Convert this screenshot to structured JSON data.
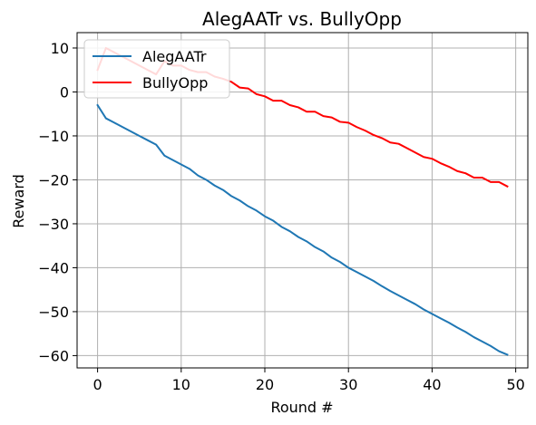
{
  "chart_data": {
    "type": "line",
    "title": "AlegAATr vs. BullyOpp",
    "xlabel": "Round #",
    "ylabel": "Reward",
    "xlim": [
      -2.45,
      51.45
    ],
    "ylim": [
      -62.8,
      13.5
    ],
    "xticks": [
      0,
      10,
      20,
      30,
      40,
      50
    ],
    "yticks": [
      10,
      0,
      -10,
      -20,
      -30,
      -40,
      -50,
      -60
    ],
    "grid": true,
    "legend_position": "upper-left",
    "x": [
      0,
      1,
      2,
      3,
      4,
      5,
      6,
      7,
      8,
      9,
      10,
      11,
      12,
      13,
      14,
      15,
      16,
      17,
      18,
      19,
      20,
      21,
      22,
      23,
      24,
      25,
      26,
      27,
      28,
      29,
      30,
      31,
      32,
      33,
      34,
      35,
      36,
      37,
      38,
      39,
      40,
      41,
      42,
      43,
      44,
      45,
      46,
      47,
      48,
      49
    ],
    "series": [
      {
        "name": "AlegAATr",
        "color": "#1f77b4",
        "values": [
          -3,
          -6,
          -7,
          -8,
          -9,
          -10,
          -11,
          -12,
          -14.5,
          -15.5,
          -16.5,
          -17.5,
          -19,
          -20,
          -21.3,
          -22.3,
          -23.7,
          -24.7,
          -26,
          -27,
          -28.3,
          -29.3,
          -30.7,
          -31.7,
          -33,
          -34,
          -35.3,
          -36.3,
          -37.7,
          -38.7,
          -40,
          -41,
          -42,
          -43,
          -44.2,
          -45.3,
          -46.3,
          -47.3,
          -48.3,
          -49.5,
          -50.5,
          -51.5,
          -52.5,
          -53.6,
          -54.6,
          -55.8,
          -56.8,
          -57.8,
          -59,
          -59.8
        ]
      },
      {
        "name": "BullyOpp",
        "color": "#ff0000",
        "values": [
          5,
          10,
          9,
          8,
          7,
          6,
          5,
          4,
          7,
          6,
          6,
          5,
          4.5,
          4.5,
          3.5,
          3,
          2.3,
          1,
          0.8,
          -0.5,
          -1,
          -2,
          -2,
          -3,
          -3.5,
          -4.5,
          -4.5,
          -5.5,
          -5.8,
          -6.8,
          -7,
          -8,
          -8.8,
          -9.8,
          -10.5,
          -11.5,
          -11.8,
          -12.8,
          -13.8,
          -14.8,
          -15.2,
          -16.2,
          -17,
          -18,
          -18.5,
          -19.5,
          -19.5,
          -20.5,
          -20.5,
          -21.5
        ]
      }
    ]
  }
}
